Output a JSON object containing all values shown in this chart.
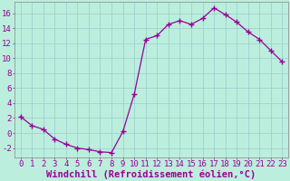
{
  "x": [
    0,
    1,
    2,
    3,
    4,
    5,
    6,
    7,
    8,
    9,
    10,
    11,
    12,
    13,
    14,
    15,
    16,
    17,
    18,
    19,
    20,
    21,
    22,
    23
  ],
  "y": [
    2.2,
    1.0,
    0.5,
    -0.8,
    -1.5,
    -2.0,
    -2.2,
    -2.5,
    -2.6,
    0.2,
    5.2,
    12.5,
    13.0,
    14.5,
    15.0,
    14.5,
    15.3,
    16.7,
    15.8,
    14.8,
    13.5,
    12.5,
    11.0,
    9.5
  ],
  "line_color": "#990099",
  "marker": "+",
  "markersize": 4,
  "linewidth": 0.9,
  "bg_color": "#bbeedd",
  "grid_color": "#99cccc",
  "xlabel": "Windchill (Refroidissement éolien,°C)",
  "xlabel_fontsize": 7.5,
  "ylabel_ticks": [
    -2,
    0,
    2,
    4,
    6,
    8,
    10,
    12,
    14,
    16
  ],
  "xlim": [
    -0.5,
    23.5
  ],
  "ylim": [
    -3.2,
    17.5
  ],
  "tick_fontsize": 6.5,
  "tick_color": "#990099",
  "label_color": "#990099"
}
